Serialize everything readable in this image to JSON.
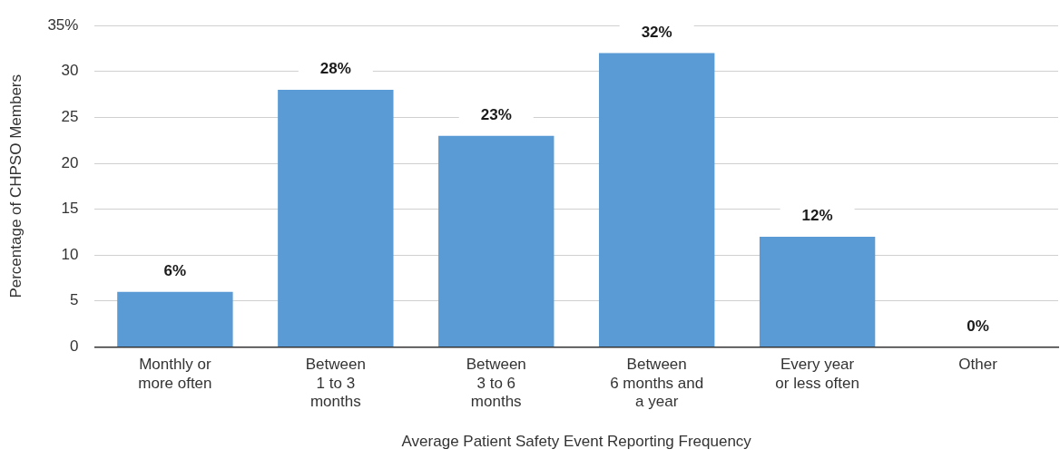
{
  "chart_data": {
    "type": "bar",
    "xlabel": "Average Patient Safety Event Reporting Frequency",
    "ylabel": "Percentage of CHPSO Members",
    "categories": [
      "Monthly or\nmore often",
      "Between\n1 to 3\nmonths",
      "Between\n3 to 6\nmonths",
      "Between\n6 months and\na year",
      "Every year\nor less often",
      "Other"
    ],
    "values": [
      6,
      28,
      23,
      32,
      12,
      0
    ],
    "color": "#5b9bd5",
    "value_labels": [
      "6%",
      "28%",
      "23%",
      "32%",
      "12%",
      "0%"
    ],
    "ylim": [
      0,
      35
    ],
    "yticks": [
      0,
      5,
      10,
      15,
      20,
      25,
      30,
      {
        "value": 35,
        "label": "35%"
      }
    ],
    "grid": "y",
    "legend": false
  }
}
